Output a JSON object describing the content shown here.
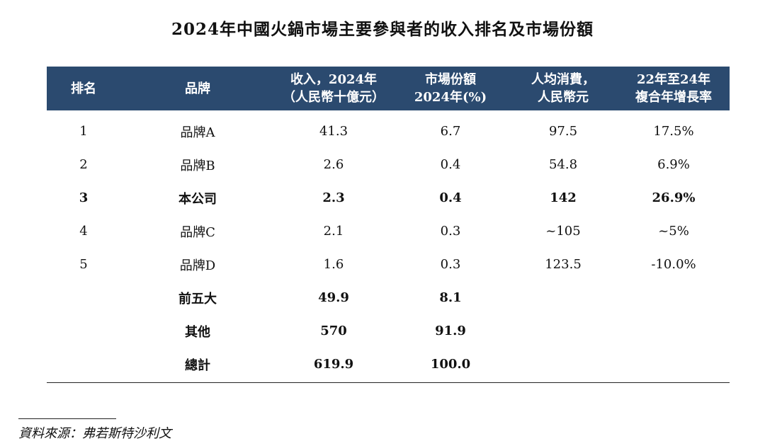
{
  "title": "2024年中國火鍋市場主要參與者的收入排名及市場份額",
  "columns": [
    {
      "line1": "排名",
      "line2": ""
    },
    {
      "line1": "品牌",
      "line2": ""
    },
    {
      "line1": "收入，2024年",
      "line2": "（人民幣十億元）"
    },
    {
      "line1": "市場份額",
      "line2": "2024年(%)"
    },
    {
      "line1": "人均消費，",
      "line2": "人民幣元"
    },
    {
      "line1": "22年至24年",
      "line2": "複合年增長率"
    }
  ],
  "rows": [
    {
      "rank": "1",
      "brand": "品牌A",
      "revenue": "41.3",
      "share": "6.7",
      "spend": "97.5",
      "cagr": "17.5%",
      "bold": false
    },
    {
      "rank": "2",
      "brand": "品牌B",
      "revenue": "2.6",
      "share": "0.4",
      "spend": "54.8",
      "cagr": "6.9%",
      "bold": false
    },
    {
      "rank": "3",
      "brand": "本公司",
      "revenue": "2.3",
      "share": "0.4",
      "spend": "142",
      "cagr": "26.9%",
      "bold": true
    },
    {
      "rank": "4",
      "brand": "品牌C",
      "revenue": "2.1",
      "share": "0.3",
      "spend": "~105",
      "cagr": "~5%",
      "bold": false
    },
    {
      "rank": "5",
      "brand": "品牌D",
      "revenue": "1.6",
      "share": "0.3",
      "spend": "123.5",
      "cagr": "-10.0%",
      "bold": false
    },
    {
      "rank": "",
      "brand": "前五大",
      "revenue": "49.9",
      "share": "8.1",
      "spend": "",
      "cagr": "",
      "bold": true
    },
    {
      "rank": "",
      "brand": "其他",
      "revenue": "570",
      "share": "91.9",
      "spend": "",
      "cagr": "",
      "bold": true
    },
    {
      "rank": "",
      "brand": "總計",
      "revenue": "619.9",
      "share": "100.0",
      "spend": "",
      "cagr": "",
      "bold": true
    }
  ],
  "source": "資料來源：弗若斯特沙利文"
}
